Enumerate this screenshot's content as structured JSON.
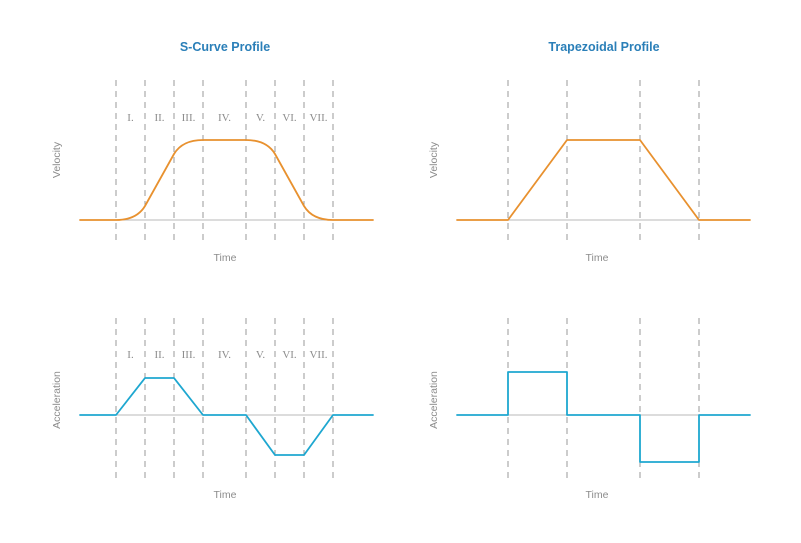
{
  "colors": {
    "title": "#2a7fb8",
    "velocity": "#e8912f",
    "acceleration": "#1ea7d0",
    "axis": "#b8b8b8",
    "divider": "#9a9a9a",
    "label": "#8c8c8c"
  },
  "scurve": {
    "title": "S-Curve Profile",
    "phases": [
      "I.",
      "II.",
      "III.",
      "IV.",
      "V.",
      "VI.",
      "VII."
    ],
    "velocity": {
      "ylabel": "Velocity",
      "xlabel": "Time"
    },
    "acceleration": {
      "ylabel": "Acceleration",
      "xlabel": "Time"
    }
  },
  "trapezoidal": {
    "title": "Trapezoidal Profile",
    "velocity": {
      "ylabel": "Velocity",
      "xlabel": "Time"
    },
    "acceleration": {
      "ylabel": "Acceleration",
      "xlabel": "Time"
    }
  }
}
